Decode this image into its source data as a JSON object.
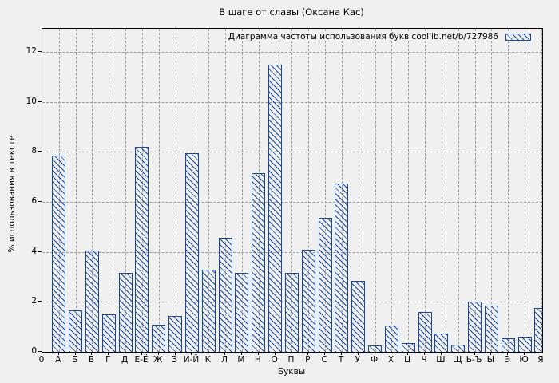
{
  "window": {
    "title": "В шаге от славы (Оксана Кас)"
  },
  "axes": {
    "y_label": "% использования в тексте",
    "x_label": "Буквы",
    "y_ticks": [
      0,
      2,
      4,
      6,
      8,
      10,
      12
    ],
    "x_origin_label": "0"
  },
  "colors": {
    "bar": "#17479e",
    "grid": "#9a9a9a",
    "background": "#f0f0f0",
    "axis": "#000000"
  },
  "chart_data": {
    "type": "bar",
    "title": "В шаге от славы (Оксана Кас)",
    "legend_label": "Диаграмма частоты использования букв coollib.net/b/727986",
    "legend_position": "top-right",
    "xlabel": "Буквы",
    "ylabel": "% использования в тексте",
    "categories": [
      "А",
      "Б",
      "В",
      "Г",
      "Д",
      "Е-Ё",
      "Ж",
      "З",
      "И-Й",
      "К",
      "Л",
      "М",
      "Н",
      "О",
      "П",
      "Р",
      "С",
      "Т",
      "У",
      "Ф",
      "Х",
      "Ц",
      "Ч",
      "Ш",
      "Щ",
      "Ь-Ъ",
      "Ы",
      "Э",
      "Ю",
      "Я"
    ],
    "values": [
      7.85,
      1.65,
      4.05,
      1.5,
      3.15,
      8.2,
      1.1,
      1.45,
      7.95,
      3.3,
      4.55,
      3.15,
      7.15,
      11.5,
      3.15,
      4.1,
      5.35,
      6.75,
      2.85,
      0.25,
      1.05,
      0.35,
      1.6,
      0.75,
      0.3,
      2.0,
      1.85,
      0.55,
      0.6,
      1.75
    ],
    "ylim": [
      0,
      12.93
    ],
    "y_tick_step": 2,
    "grid": true,
    "bar_style": "hatched"
  }
}
